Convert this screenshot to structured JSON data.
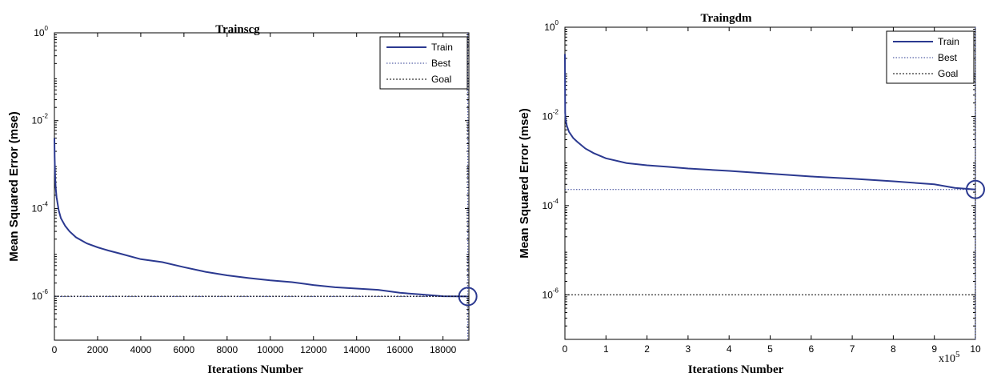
{
  "colors": {
    "train": "#2b3990",
    "best": "#2b3990",
    "goal": "#000000",
    "axis": "#000000"
  },
  "chart_data": [
    {
      "type": "line",
      "title": "Trainscg",
      "xlabel": "Iterations Number",
      "ylabel": "Mean Squared Error  (mse)",
      "xlim": [
        0,
        19200
      ],
      "ylim": [
        1e-07,
        1
      ],
      "yscale": "log",
      "grid": false,
      "legend_position": "top-right",
      "xticks": [
        0,
        2000,
        4000,
        6000,
        8000,
        10000,
        12000,
        14000,
        16000,
        18000
      ],
      "xtick_labels": [
        "0",
        "2000",
        "4000",
        "6000",
        "8000",
        "10000",
        "12000",
        "14000",
        "16000",
        "18000"
      ],
      "yticks": [
        {
          "value": 1,
          "base": "10",
          "exp": "0"
        },
        {
          "value": 0.01,
          "base": "10",
          "exp": "-2"
        },
        {
          "value": 0.0001,
          "base": "10",
          "exp": "-4"
        },
        {
          "value": 1e-06,
          "base": "10",
          "exp": "-6"
        }
      ],
      "x_multiplier": "",
      "series": [
        {
          "name": "Train",
          "style": "solid",
          "x": [
            0,
            10,
            30,
            60,
            100,
            200,
            300,
            500,
            700,
            1000,
            1500,
            2000,
            2500,
            3000,
            4000,
            5000,
            6000,
            7000,
            8000,
            9000,
            10000,
            11000,
            12000,
            13000,
            14000,
            15000,
            16000,
            17000,
            18000,
            19150
          ],
          "y": [
            0.004,
            0.0015,
            0.0006,
            0.0003,
            0.00018,
            9e-05,
            6e-05,
            4e-05,
            3e-05,
            2.2e-05,
            1.6e-05,
            1.3e-05,
            1.1e-05,
            9.5e-06,
            7e-06,
            6e-06,
            4.6e-06,
            3.6e-06,
            3e-06,
            2.6e-06,
            2.3e-06,
            2.1e-06,
            1.8e-06,
            1.6e-06,
            1.5e-06,
            1.4e-06,
            1.2e-06,
            1.1e-06,
            1e-06,
            9.9e-07
          ]
        },
        {
          "name": "Best",
          "style": "dotted",
          "x_at": 19150,
          "y_at": 9.9e-07
        },
        {
          "name": "Goal",
          "style": "dashed",
          "y_at": 1e-06
        }
      ]
    },
    {
      "type": "line",
      "title": "Traingdm",
      "xlabel": "Iterations Number",
      "ylabel": "Mean Squared Error  (mse)",
      "xlim": [
        0,
        1000000
      ],
      "ylim": [
        1e-07,
        1
      ],
      "yscale": "log",
      "grid": false,
      "legend_position": "top-right",
      "xticks": [
        0,
        100000,
        200000,
        300000,
        400000,
        500000,
        600000,
        700000,
        800000,
        900000,
        1000000
      ],
      "xtick_labels": [
        "0",
        "1",
        "2",
        "3",
        "4",
        "5",
        "6",
        "7",
        "8",
        "9",
        "10"
      ],
      "yticks": [
        {
          "value": 1,
          "base": "10",
          "exp": "0"
        },
        {
          "value": 0.01,
          "base": "10",
          "exp": "-2"
        },
        {
          "value": 0.0001,
          "base": "10",
          "exp": "-4"
        },
        {
          "value": 1e-06,
          "base": "10",
          "exp": "-6"
        }
      ],
      "x_multiplier": {
        "base": "x10",
        "exp": "5"
      },
      "series": [
        {
          "name": "Train",
          "style": "solid",
          "x": [
            0,
            500,
            2000,
            5000,
            10000,
            20000,
            30000,
            50000,
            70000,
            100000,
            150000,
            200000,
            250000,
            300000,
            400000,
            500000,
            600000,
            700000,
            800000,
            900000,
            950000,
            1000000
          ],
          "y": [
            0.25,
            0.012,
            0.008,
            0.006,
            0.0045,
            0.0033,
            0.0027,
            0.0019,
            0.0015,
            0.00115,
            0.0009,
            0.0008,
            0.00074,
            0.00068,
            0.0006,
            0.00052,
            0.00045,
            0.0004,
            0.00035,
            0.0003,
            0.00025,
            0.00023
          ]
        },
        {
          "name": "Best",
          "style": "dotted",
          "x_at": 1000000,
          "y_at": 0.00023
        },
        {
          "name": "Goal",
          "style": "dashed",
          "y_at": 1e-06
        }
      ]
    }
  ]
}
